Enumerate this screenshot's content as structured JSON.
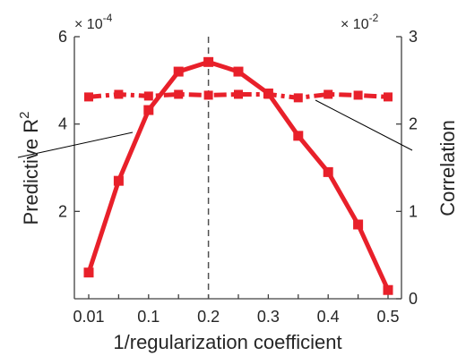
{
  "chart_data": {
    "type": "line",
    "x": [
      "0.01",
      "0.05",
      "0.1",
      "0.15",
      "0.2",
      "0.25",
      "0.3",
      "0.35",
      "0.4",
      "0.45",
      "0.5"
    ],
    "xlabel": "1/regularization coefficient",
    "x_tick_labels": [
      "0.01",
      "0.1",
      "0.2",
      "0.3",
      "0.4",
      "0.5"
    ],
    "reference_line_x": "0.2",
    "left_axis": {
      "label": "Predictive R",
      "label_superscript": "2",
      "multiplier": "× 10",
      "multiplier_exponent": "-4",
      "ylim": [
        0,
        6
      ],
      "ticks": [
        "2",
        "4",
        "6"
      ]
    },
    "right_axis": {
      "label": "Correlation",
      "multiplier": "× 10",
      "multiplier_exponent": "-2",
      "ylim": [
        0,
        3
      ],
      "ticks": [
        "0",
        "1",
        "2",
        "3"
      ]
    },
    "series": [
      {
        "style": "solid",
        "axis": "left",
        "color": "#e8202a",
        "values": [
          6e-05,
          0.00027,
          0.000432,
          0.00052,
          0.000542,
          0.00052,
          0.00047,
          0.000373,
          0.00029,
          0.00017,
          2e-05
        ]
      },
      {
        "style": "dash-dot",
        "axis": "right",
        "color": "#e8202a",
        "values": [
          0.0231,
          0.0234,
          0.0232,
          0.0234,
          0.0233,
          0.0234,
          0.0234,
          0.023,
          0.0234,
          0.0233,
          0.0231
        ]
      }
    ]
  }
}
